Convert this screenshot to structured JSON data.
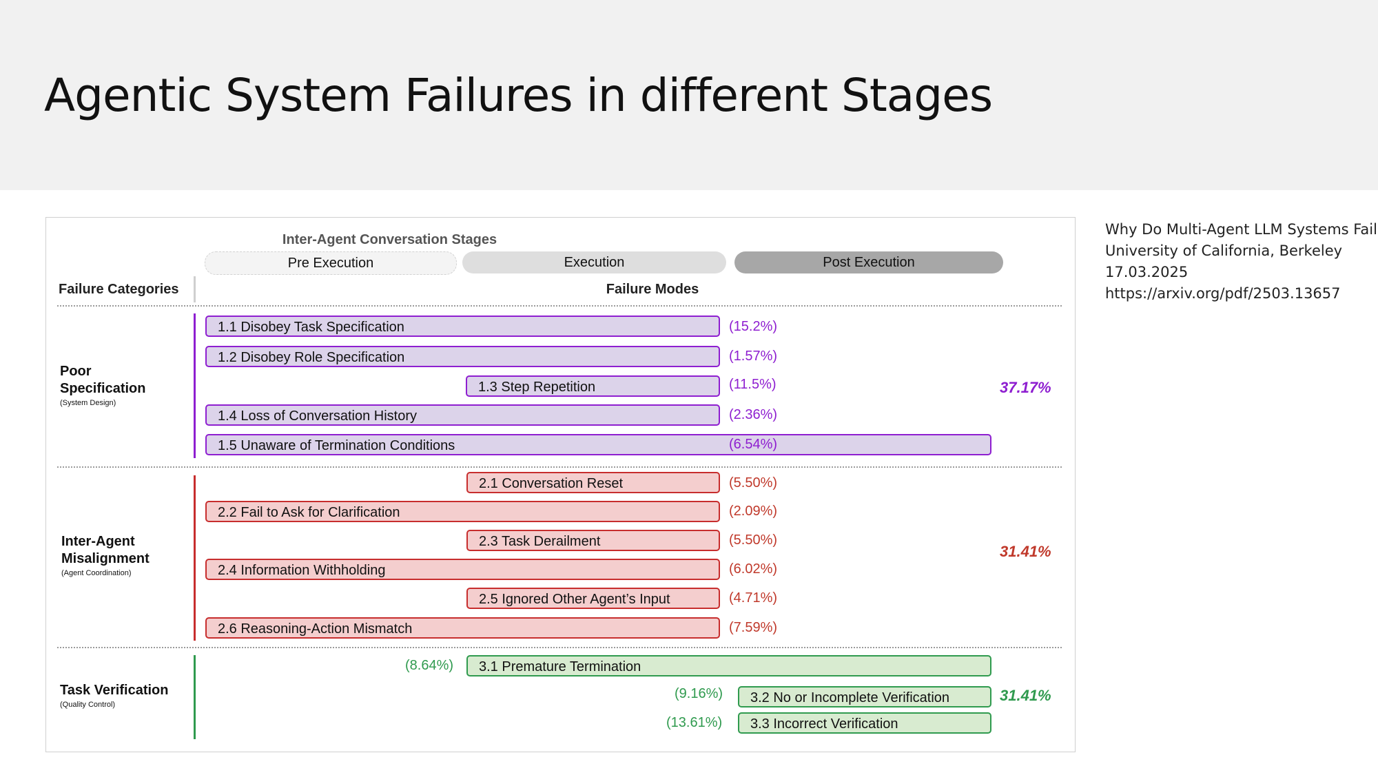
{
  "slide": {
    "title": "Agentic System Failures in different Stages"
  },
  "reference": {
    "lines": [
      "Why Do Multi-Agent LLM Systems Fail?",
      "University of California, Berkeley",
      "17.03.2025",
      "https://arxiv.org/pdf/2503.13657"
    ]
  },
  "figure": {
    "heading": "Inter-Agent Conversation Stages",
    "stages": [
      "Pre Execution",
      "Execution",
      "Post Execution"
    ],
    "col_categories": "Failure Categories",
    "col_modes": "Failure Modes",
    "categories": [
      {
        "name_lines": [
          "Poor",
          "Specification"
        ],
        "subtitle": "(System Design)",
        "color": "#8e1ed0",
        "total": "37.17%",
        "modes": [
          {
            "label": "1.1 Disobey Task Specification",
            "pct": "(15.2%)"
          },
          {
            "label": "1.2 Disobey Role Specification",
            "pct": "(1.57%)"
          },
          {
            "label": "1.3 Step Repetition",
            "pct": "(11.5%)"
          },
          {
            "label": "1.4 Loss of Conversation History",
            "pct": "(2.36%)"
          },
          {
            "label": "1.5 Unaware of Termination Conditions",
            "pct": "(6.54%)"
          }
        ]
      },
      {
        "name_lines": [
          "Inter-Agent",
          "Misalignment"
        ],
        "subtitle": "(Agent Coordination)",
        "color": "#c72d2d",
        "total": "31.41%",
        "modes": [
          {
            "label": "2.1 Conversation Reset",
            "pct": "(5.50%)"
          },
          {
            "label": "2.2 Fail to Ask for Clarification",
            "pct": "(2.09%)"
          },
          {
            "label": "2.3 Task Derailment",
            "pct": "(5.50%)"
          },
          {
            "label": "2.4 Information Withholding",
            "pct": "(6.02%)"
          },
          {
            "label": "2.5 Ignored Other Agent’s Input",
            "pct": "(4.71%)"
          },
          {
            "label": "2.6 Reasoning-Action Mismatch",
            "pct": "(7.59%)"
          }
        ]
      },
      {
        "name_lines": [
          "Task Verification"
        ],
        "subtitle": "(Quality Control)",
        "color": "#2f9a4e",
        "total": "31.41%",
        "modes": [
          {
            "label": "3.1  Premature Termination",
            "pct": "(8.64%)"
          },
          {
            "label": "3.2 No or Incomplete Verification",
            "pct": "(9.16%)"
          },
          {
            "label": "3.3 Incorrect Verification",
            "pct": "(13.61%)"
          }
        ]
      }
    ]
  }
}
